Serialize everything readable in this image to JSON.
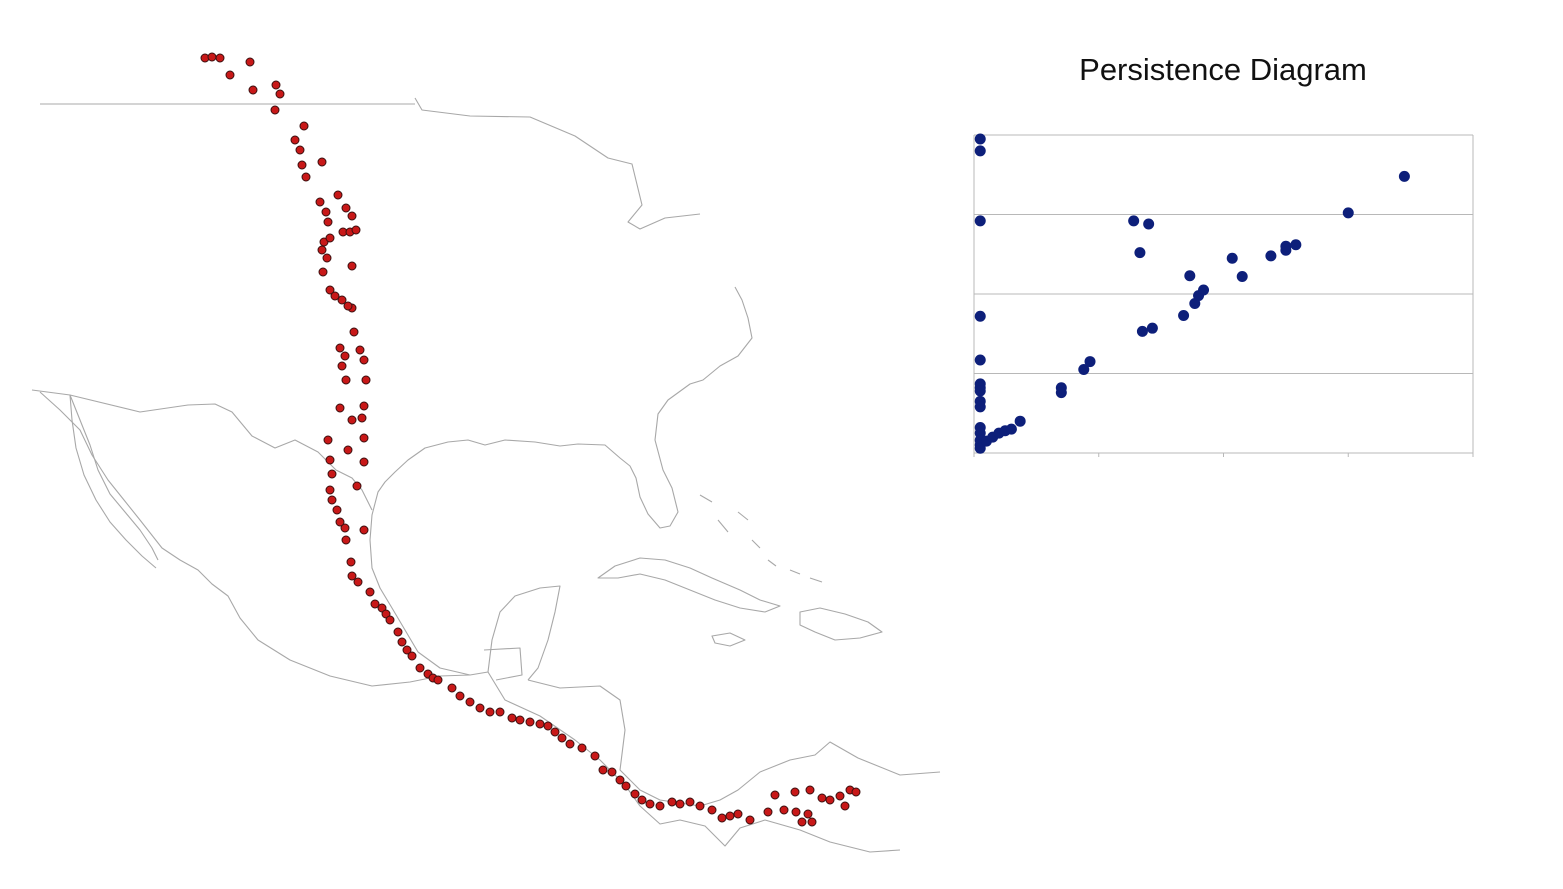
{
  "map": {
    "coast_color": "#a8a8a8",
    "event_fill": "#c81818",
    "event_stroke": "#3a1010",
    "icon": "map-basemap"
  },
  "chart_data": {
    "type": "scatter",
    "title": "Persistence Diagram",
    "xlabel": "",
    "ylabel": "",
    "xlim": [
      0,
      4
    ],
    "ylim": [
      0,
      4
    ],
    "grid": "horizontal",
    "marker_color": "#0d1f7a",
    "series": [
      {
        "points": [
          [
            0.05,
            3.95
          ],
          [
            0.05,
            3.8
          ],
          [
            0.05,
            2.92
          ],
          [
            0.05,
            1.72
          ],
          [
            0.05,
            1.17
          ],
          [
            0.05,
            0.87
          ],
          [
            0.05,
            0.82
          ],
          [
            0.05,
            0.78
          ],
          [
            0.05,
            0.65
          ],
          [
            0.05,
            0.58
          ],
          [
            0.05,
            0.32
          ],
          [
            0.05,
            0.25
          ],
          [
            0.05,
            0.16
          ],
          [
            0.05,
            0.1
          ],
          [
            0.05,
            0.06
          ],
          [
            0.1,
            0.15
          ],
          [
            0.15,
            0.2
          ],
          [
            0.2,
            0.25
          ],
          [
            0.25,
            0.28
          ],
          [
            0.3,
            0.3
          ],
          [
            0.37,
            0.4
          ],
          [
            0.7,
            0.82
          ],
          [
            0.7,
            0.76
          ],
          [
            0.88,
            1.05
          ],
          [
            0.93,
            1.15
          ],
          [
            1.28,
            2.92
          ],
          [
            1.4,
            2.88
          ],
          [
            1.33,
            2.52
          ],
          [
            1.35,
            1.53
          ],
          [
            1.43,
            1.57
          ],
          [
            1.68,
            1.73
          ],
          [
            1.77,
            1.88
          ],
          [
            1.8,
            1.98
          ],
          [
            1.84,
            2.05
          ],
          [
            1.73,
            2.23
          ],
          [
            2.07,
            2.45
          ],
          [
            2.15,
            2.22
          ],
          [
            2.38,
            2.48
          ],
          [
            2.5,
            2.55
          ],
          [
            2.5,
            2.6
          ],
          [
            2.58,
            2.62
          ],
          [
            3.0,
            3.02
          ],
          [
            3.45,
            3.48
          ]
        ]
      }
    ]
  }
}
